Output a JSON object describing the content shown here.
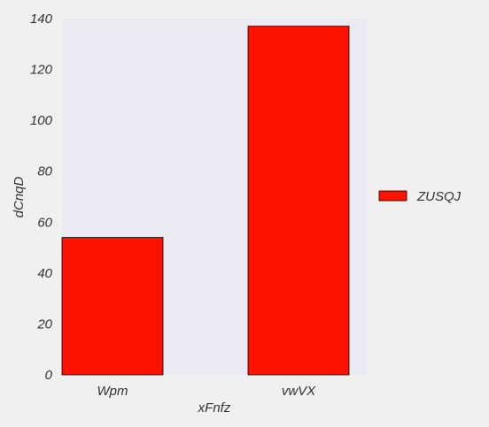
{
  "chart_data": {
    "type": "bar",
    "categories": [
      "Wpm",
      "vwVX"
    ],
    "series": [
      {
        "name": "ZUSQJ",
        "values": [
          54,
          137
        ],
        "color": "#fc1300"
      }
    ],
    "title": "",
    "xlabel": "xFnfz",
    "ylabel": "dCnqD",
    "ylim": [
      0,
      140
    ],
    "yticks": [
      0,
      20,
      40,
      60,
      80,
      100,
      120,
      140
    ],
    "grid": false,
    "legend": "right",
    "plot_background": "#eaeaf2",
    "page_background": "#f0f0f0"
  }
}
